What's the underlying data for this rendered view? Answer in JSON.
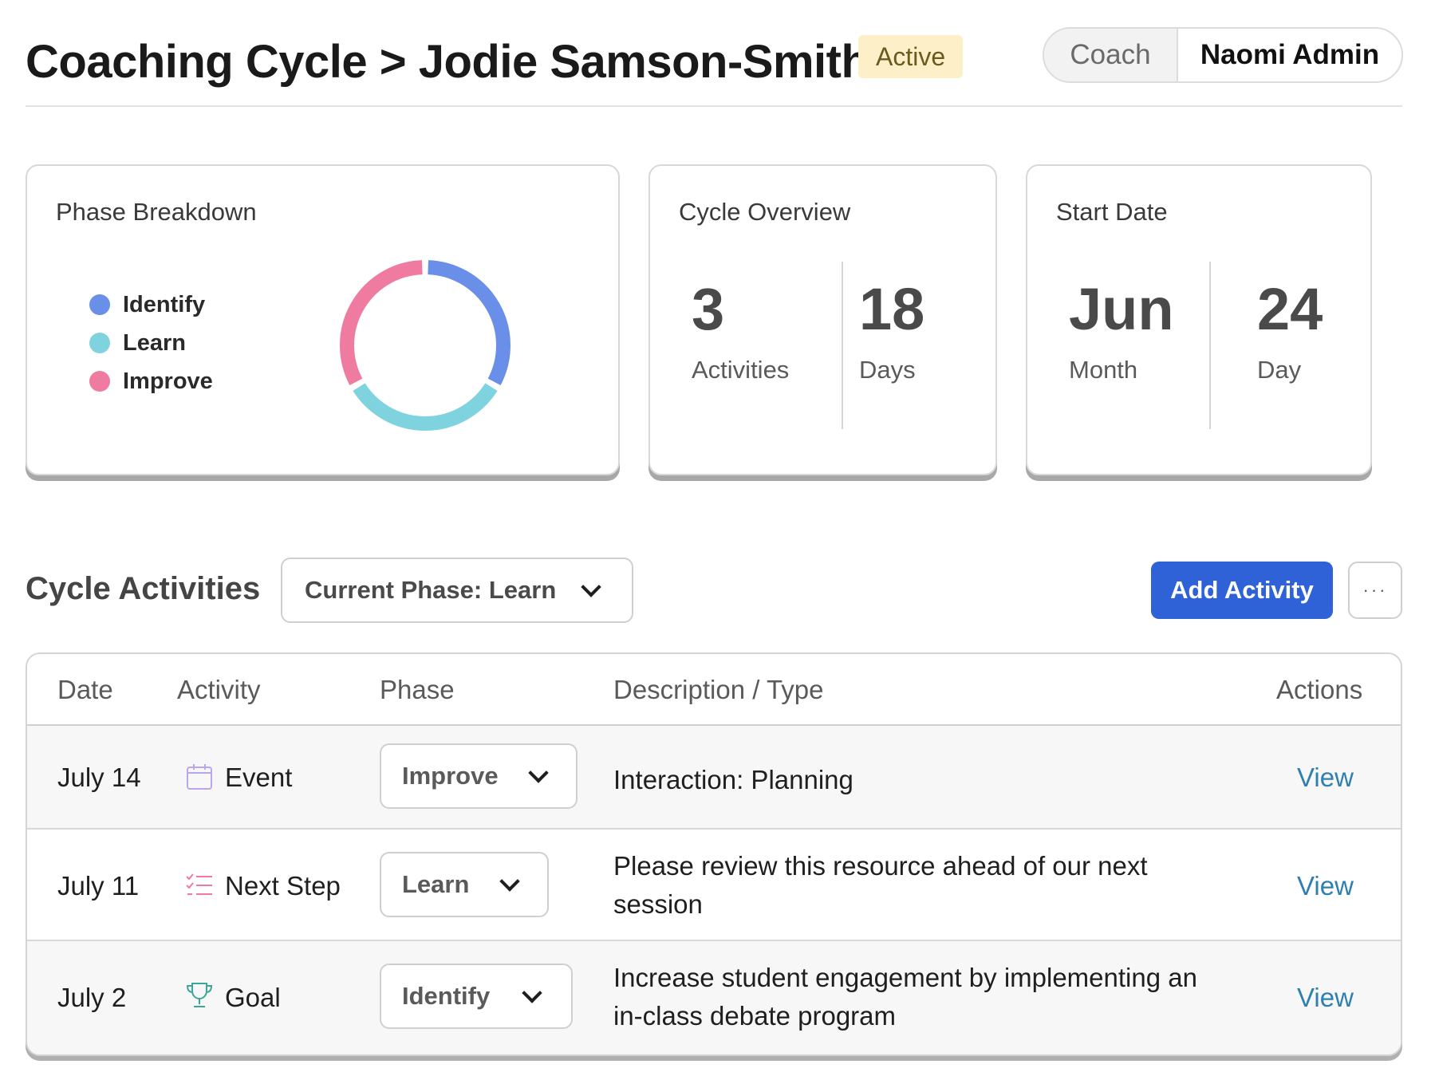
{
  "header": {
    "title": "Coaching Cycle > Jodie Samson-Smith",
    "status": "Active",
    "role_coach": "Coach",
    "role_user": "Naomi Admin"
  },
  "phase_breakdown": {
    "title": "Phase Breakdown",
    "legend": [
      {
        "label": "Identify",
        "color": "#6a8fe8"
      },
      {
        "label": "Learn",
        "color": "#7fd3df"
      },
      {
        "label": "Improve",
        "color": "#ef7ba0"
      }
    ]
  },
  "chart_data": {
    "type": "pie",
    "categories": [
      "Identify",
      "Learn",
      "Improve"
    ],
    "values": [
      1,
      1,
      1
    ]
  },
  "cycle_overview": {
    "title": "Cycle Overview",
    "activities_value": "3",
    "activities_label": "Activities",
    "days_value": "18",
    "days_label": "Days"
  },
  "start_date": {
    "title": "Start Date",
    "month_value": "Jun",
    "month_label": "Month",
    "day_value": "24",
    "day_label": "Day"
  },
  "activities": {
    "title": "Cycle Activities",
    "phase_filter": "Current Phase: Learn",
    "add_label": "Add Activity",
    "more_label": "···",
    "columns": [
      "Date",
      "Activity",
      "Phase",
      "Description / Type",
      "Actions"
    ],
    "rows": [
      {
        "date": "July 14",
        "icon": "calendar-icon",
        "activity": "Event",
        "phase": "Improve",
        "description": "Interaction: Planning",
        "action": "View"
      },
      {
        "date": "July 11",
        "icon": "checklist-icon",
        "activity": "Next Step",
        "phase": "Learn",
        "description": "Please review this resource ahead of our next session",
        "action": "View"
      },
      {
        "date": "July 2",
        "icon": "trophy-icon",
        "activity": "Goal",
        "phase": "Identify",
        "description": "Increase student engagement by implementing an in-class debate program",
        "action": "View"
      }
    ]
  }
}
